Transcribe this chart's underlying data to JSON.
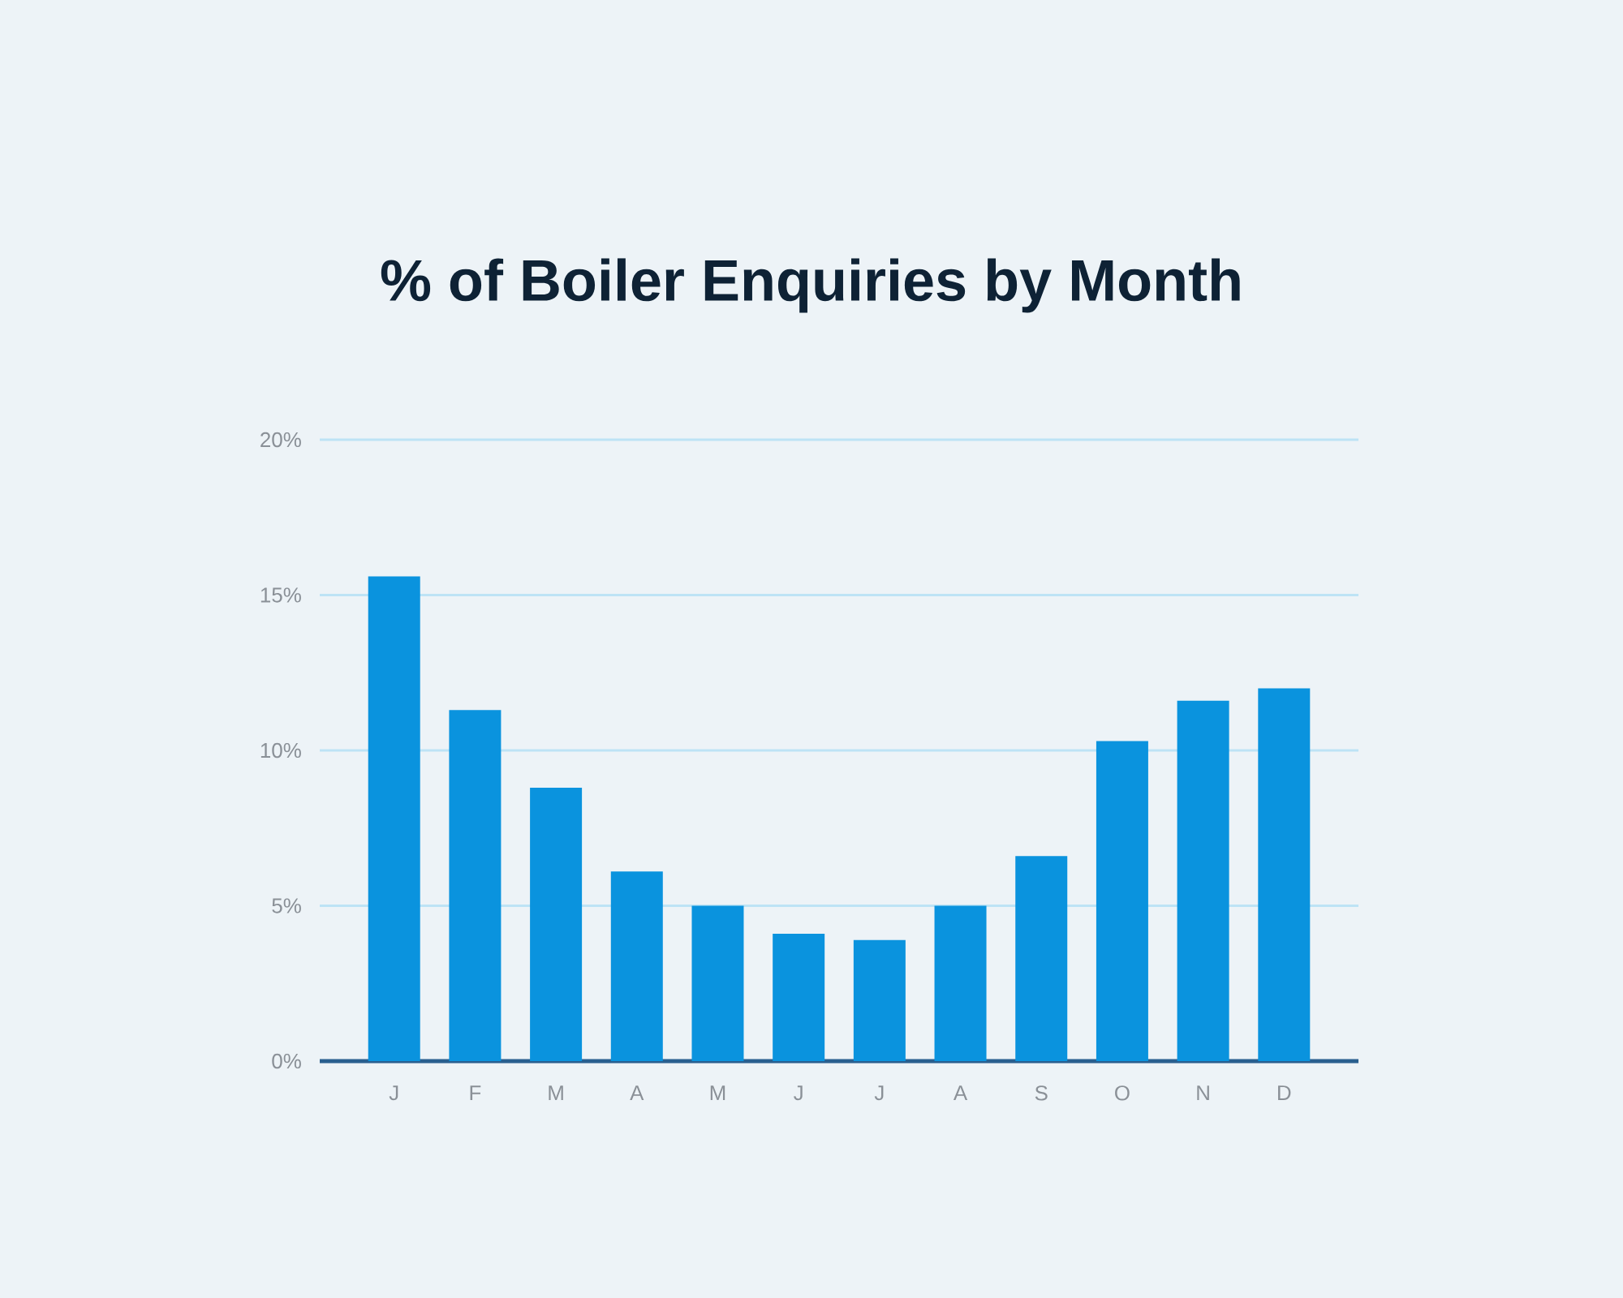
{
  "chart_data": {
    "type": "bar",
    "title": "% of Boiler Enquiries by Month",
    "categories": [
      "J",
      "F",
      "M",
      "A",
      "M",
      "J",
      "J",
      "A",
      "S",
      "O",
      "N",
      "D"
    ],
    "values": [
      15.6,
      11.3,
      8.8,
      6.1,
      5.0,
      4.1,
      3.9,
      5.0,
      6.6,
      10.3,
      11.6,
      12.0
    ],
    "color": "#0a93de",
    "ylim": [
      0,
      20
    ],
    "yticks": [
      {
        "value": 0,
        "label": "0%"
      },
      {
        "value": 5,
        "label": "5%"
      },
      {
        "value": 10,
        "label": "10%"
      },
      {
        "value": 15,
        "label": "15%"
      },
      {
        "value": 20,
        "label": "20%"
      }
    ],
    "grid": "y"
  }
}
